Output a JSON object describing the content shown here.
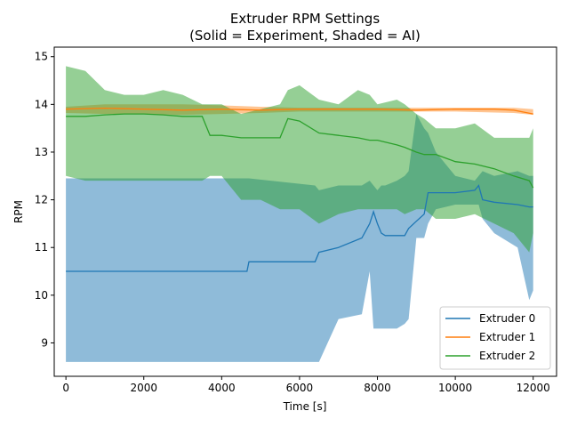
{
  "chart_data": {
    "type": "line",
    "title_line1": "Extruder RPM Settings",
    "title_line2": "(Solid = Experiment, Shaded = AI)",
    "xlabel": "Time [s]",
    "ylabel": "RPM",
    "xlim": [
      -300,
      12600
    ],
    "ylim": [
      8.3,
      15.2
    ],
    "xticks": [
      0,
      2000,
      4000,
      6000,
      8000,
      10000,
      12000
    ],
    "yticks": [
      9,
      10,
      11,
      12,
      13,
      14,
      15
    ],
    "grid": false,
    "legend_position": "lower right",
    "colors": {
      "extruder0": "#1f77b4",
      "extruder1": "#ff7f0e",
      "extruder2": "#2ca02c"
    },
    "series": [
      {
        "name": "Extruder 0",
        "x": [
          0,
          4650,
          4700,
          6400,
          6500,
          7000,
          7600,
          7800,
          7900,
          8000,
          8100,
          8200,
          8500,
          8700,
          8800,
          9000,
          9200,
          9300,
          9500,
          10000,
          10500,
          10600,
          10700,
          11000,
          11600,
          11900,
          12000
        ],
        "experiment": [
          10.5,
          10.5,
          10.7,
          10.7,
          10.9,
          11.0,
          11.2,
          11.5,
          11.75,
          11.5,
          11.3,
          11.25,
          11.25,
          11.25,
          11.4,
          11.55,
          11.7,
          12.15,
          12.15,
          12.15,
          12.2,
          12.3,
          12.0,
          11.95,
          11.9,
          11.85,
          11.85
        ],
        "ai_lower": [
          8.6,
          8.6,
          8.6,
          8.6,
          8.6,
          9.5,
          9.6,
          10.5,
          9.3,
          9.3,
          9.3,
          9.3,
          9.3,
          9.4,
          9.5,
          11.2,
          11.2,
          11.5,
          11.8,
          11.9,
          11.9,
          11.9,
          11.6,
          11.3,
          11.0,
          9.9,
          10.1
        ],
        "ai_upper": [
          12.45,
          12.45,
          12.45,
          12.3,
          12.2,
          12.3,
          12.3,
          12.4,
          12.3,
          12.2,
          12.3,
          12.3,
          12.4,
          12.5,
          12.6,
          13.8,
          13.5,
          13.4,
          13.0,
          12.5,
          12.4,
          12.5,
          12.6,
          12.5,
          12.6,
          12.5,
          12.5
        ]
      },
      {
        "name": "Extruder 1",
        "x": [
          0,
          1000,
          2000,
          3000,
          4000,
          5000,
          6000,
          7000,
          8000,
          9000,
          10000,
          11000,
          11500,
          12000
        ],
        "experiment": [
          13.9,
          13.92,
          13.9,
          13.88,
          13.9,
          13.88,
          13.9,
          13.9,
          13.9,
          13.88,
          13.9,
          13.9,
          13.88,
          13.8
        ],
        "ai_lower": [
          13.82,
          13.8,
          13.8,
          13.78,
          13.8,
          13.82,
          13.85,
          13.85,
          13.85,
          13.85,
          13.85,
          13.83,
          13.82,
          13.78
        ],
        "ai_upper": [
          13.95,
          14.0,
          14.0,
          14.0,
          13.98,
          13.95,
          13.93,
          13.93,
          13.93,
          13.93,
          13.93,
          13.93,
          13.93,
          13.9
        ]
      },
      {
        "name": "Extruder 2",
        "x": [
          0,
          500,
          1000,
          1500,
          2000,
          2500,
          3000,
          3500,
          3700,
          4000,
          4500,
          5000,
          5500,
          5700,
          6000,
          6500,
          7000,
          7500,
          7800,
          8000,
          8500,
          8700,
          9000,
          9200,
          9500,
          10000,
          10500,
          11000,
          11500,
          11900,
          12000
        ],
        "experiment": [
          13.75,
          13.75,
          13.78,
          13.8,
          13.8,
          13.78,
          13.75,
          13.75,
          13.35,
          13.35,
          13.3,
          13.3,
          13.3,
          13.7,
          13.65,
          13.4,
          13.35,
          13.3,
          13.25,
          13.25,
          13.15,
          13.1,
          13.0,
          12.95,
          12.95,
          12.8,
          12.75,
          12.65,
          12.5,
          12.4,
          12.25
        ],
        "ai_lower": [
          12.5,
          12.4,
          12.4,
          12.4,
          12.4,
          12.4,
          12.4,
          12.4,
          12.5,
          12.5,
          12.0,
          12.0,
          11.8,
          11.8,
          11.8,
          11.5,
          11.7,
          11.8,
          11.8,
          11.8,
          11.8,
          11.7,
          11.8,
          11.8,
          11.6,
          11.6,
          11.7,
          11.5,
          11.3,
          10.9,
          11.3
        ],
        "ai_upper": [
          14.8,
          14.7,
          14.3,
          14.2,
          14.2,
          14.3,
          14.2,
          14.0,
          14.0,
          14.0,
          13.8,
          13.9,
          14.0,
          14.3,
          14.4,
          14.1,
          14.0,
          14.3,
          14.2,
          14.0,
          14.1,
          14.0,
          13.8,
          13.7,
          13.5,
          13.5,
          13.6,
          13.3,
          13.3,
          13.3,
          13.5
        ]
      }
    ]
  }
}
